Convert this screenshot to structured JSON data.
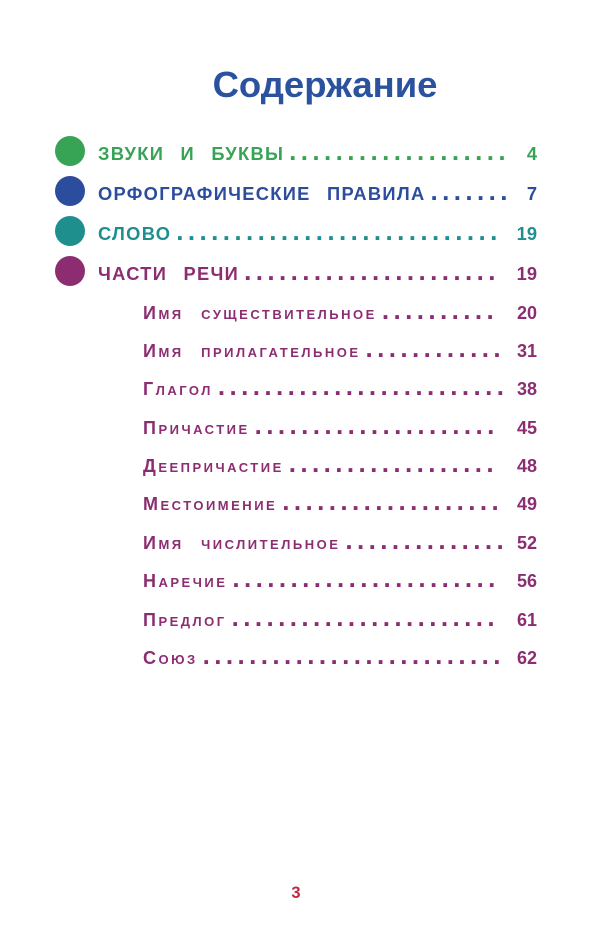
{
  "title": "Содержание",
  "title_color": "#2a529f",
  "footer_page_number": "3",
  "footer_color": "#bc2a3c",
  "entries": [
    {
      "label": "ЗВУКИ И БУКВЫ",
      "page": "4",
      "level": 1,
      "color": "#37a355"
    },
    {
      "label": "ОРФОГРАФИЧЕСКИЕ ПРАВИЛА",
      "page": "7",
      "level": 1,
      "color": "#2c4d9d"
    },
    {
      "label": "СЛОВО",
      "page": "19",
      "level": 1,
      "color": "#1f8f8e"
    },
    {
      "label": "ЧАСТИ РЕЧИ",
      "page": "19",
      "level": 1,
      "color": "#8d2d71"
    },
    {
      "label": "Имя существительное",
      "page": "20",
      "level": 2,
      "color": "#8d2d71"
    },
    {
      "label": "Имя прилагательное",
      "page": "31",
      "level": 2,
      "color": "#8d2d71"
    },
    {
      "label": "Глагол",
      "page": "38",
      "level": 2,
      "color": "#8d2d71"
    },
    {
      "label": "Причастие",
      "page": "45",
      "level": 2,
      "color": "#8d2d71"
    },
    {
      "label": "Деепричастие",
      "page": "48",
      "level": 2,
      "color": "#8d2d71"
    },
    {
      "label": "Местоимение",
      "page": "49",
      "level": 2,
      "color": "#8d2d71"
    },
    {
      "label": "Имя числительное",
      "page": "52",
      "level": 2,
      "color": "#8d2d71"
    },
    {
      "label": "Наречие",
      "page": "56",
      "level": 2,
      "color": "#8d2d71"
    },
    {
      "label": "Предлог",
      "page": "61",
      "level": 2,
      "color": "#8d2d71"
    },
    {
      "label": "Союз",
      "page": "62",
      "level": 2,
      "color": "#8d2d71"
    }
  ]
}
